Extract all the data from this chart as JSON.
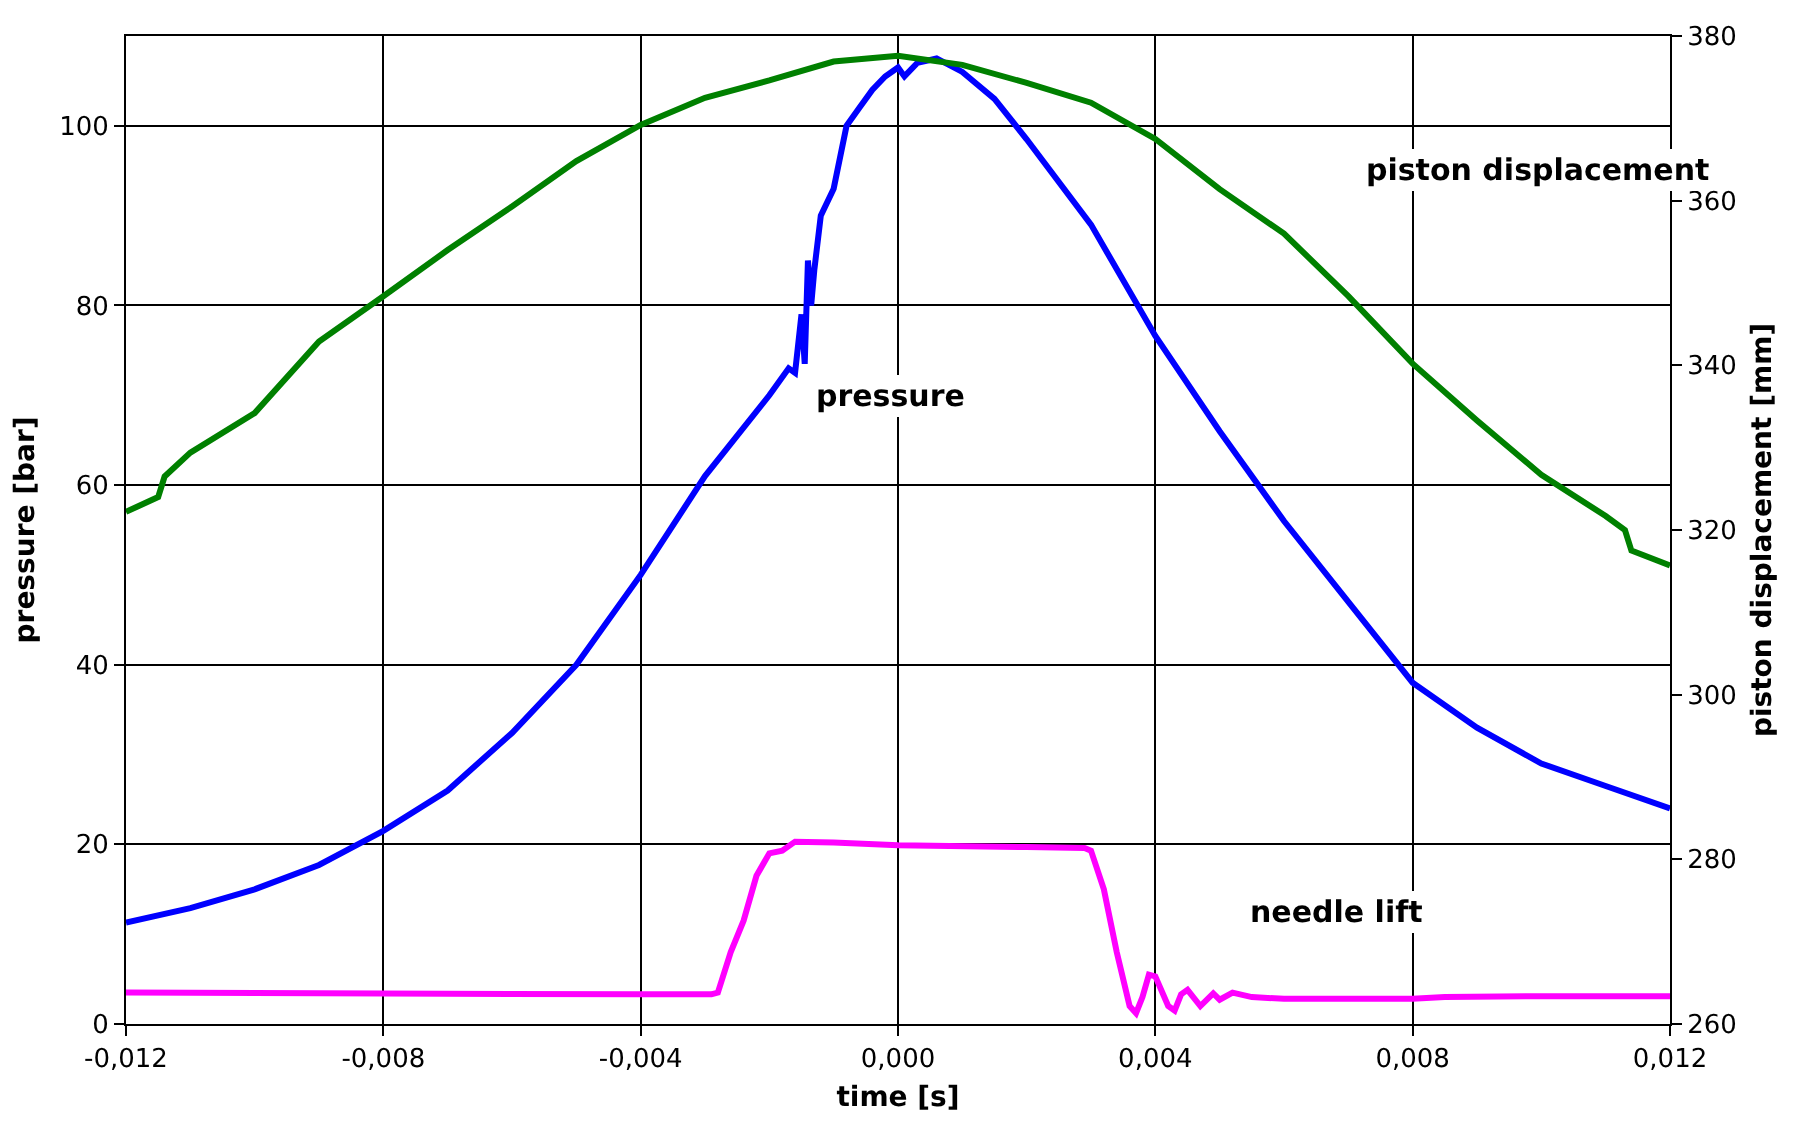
{
  "chart_data": {
    "type": "line",
    "xlabel": "time [s]",
    "ylabel": "pressure [bar]",
    "y2label": "piston displacement [mm]",
    "xlim": [
      -0.012,
      0.012
    ],
    "xticks": [
      {
        "value": -0.012,
        "label": "-0,012"
      },
      {
        "value": -0.008,
        "label": "-0,008"
      },
      {
        "value": -0.004,
        "label": "-0,004"
      },
      {
        "value": 0,
        "label": "0,000"
      },
      {
        "value": 0.004,
        "label": "0,004"
      },
      {
        "value": 0.008,
        "label": "0,008"
      },
      {
        "value": 0.012,
        "label": "0,012"
      }
    ],
    "ylim": [
      0,
      110
    ],
    "yticks": [
      0,
      20,
      40,
      60,
      80,
      100
    ],
    "y2lim": [
      260,
      380
    ],
    "y2ticks": [
      260,
      280,
      300,
      320,
      340,
      360,
      380
    ],
    "grid": true,
    "legend": false,
    "marker": "none",
    "line_style": "solid",
    "series": [
      {
        "name": "pressure",
        "color": "#0000ff",
        "x": [
          -0.012,
          -0.011,
          -0.01,
          -0.009,
          -0.008,
          -0.007,
          -0.006,
          -0.005,
          -0.004,
          -0.003,
          -0.002,
          -0.0017,
          -0.0016,
          -0.0015,
          -0.00145,
          -0.0014,
          -0.00135,
          -0.0013,
          -0.0012,
          -0.001,
          -0.0008,
          -0.0006,
          -0.0004,
          -0.0002,
          0,
          0.0001,
          0.0003,
          0.0006,
          0.001,
          0.0015,
          0.002,
          0.003,
          0.004,
          0.005,
          0.006,
          0.007,
          0.008,
          0.009,
          0.01,
          0.011,
          0.012
        ],
        "values": [
          11.3,
          12.9,
          15,
          17.7,
          21.5,
          26,
          32.4,
          40,
          50,
          61,
          70,
          73,
          72.5,
          79,
          73.5,
          85,
          80,
          84,
          90,
          93,
          100,
          102,
          104,
          105.5,
          106.5,
          105.5,
          107,
          107.5,
          106,
          103,
          98.5,
          89,
          76.6,
          66,
          56,
          47,
          38,
          33,
          29,
          26.5,
          24
        ]
      },
      {
        "name": "piston displacement",
        "color": "#008000",
        "axis": "y2",
        "x": [
          -0.012,
          -0.0115,
          -0.0114,
          -0.011,
          -0.01,
          -0.009,
          -0.008,
          -0.007,
          -0.006,
          -0.005,
          -0.004,
          -0.003,
          -0.002,
          -0.001,
          0,
          0.001,
          0.002,
          0.003,
          0.004,
          0.005,
          0.006,
          0.007,
          0.008,
          0.009,
          0.01,
          0.011,
          0.0113,
          0.0114,
          0.012
        ],
        "values": [
          322.2,
          324,
          326.5,
          329.4,
          334.2,
          342.9,
          348.4,
          354,
          359.3,
          364.8,
          369.2,
          372.5,
          374.6,
          376.9,
          377.6,
          376.5,
          374.3,
          371.9,
          367.5,
          361.4,
          356,
          348.4,
          340.2,
          333.3,
          326.7,
          321.7,
          320,
          317.5,
          315.7
        ]
      },
      {
        "name": "needle lift",
        "color": "#ff00ff",
        "x": [
          -0.012,
          -0.008,
          -0.004,
          -0.0029,
          -0.0028,
          -0.0026,
          -0.0024,
          -0.0022,
          -0.002,
          -0.0018,
          -0.0016,
          -0.001,
          0,
          0.002,
          0.0029,
          0.003,
          0.0032,
          0.0034,
          0.0036,
          0.0037,
          0.0038,
          0.0039,
          0.004,
          0.0042,
          0.0043,
          0.0044,
          0.0045,
          0.0047,
          0.0049,
          0.005,
          0.0052,
          0.0055,
          0.006,
          0.008,
          0.0085,
          0.01,
          0.012
        ],
        "values": [
          3.5,
          3.4,
          3.3,
          3.3,
          3.5,
          8,
          11.5,
          16.5,
          19,
          19.3,
          20.3,
          20.2,
          19.9,
          19.7,
          19.6,
          19.3,
          15,
          8,
          2,
          1.2,
          3,
          5.5,
          5.3,
          2,
          1.5,
          3.3,
          3.8,
          2,
          3.4,
          2.7,
          3.5,
          3,
          2.8,
          2.8,
          3,
          3.1,
          3.1
        ]
      }
    ]
  }
}
